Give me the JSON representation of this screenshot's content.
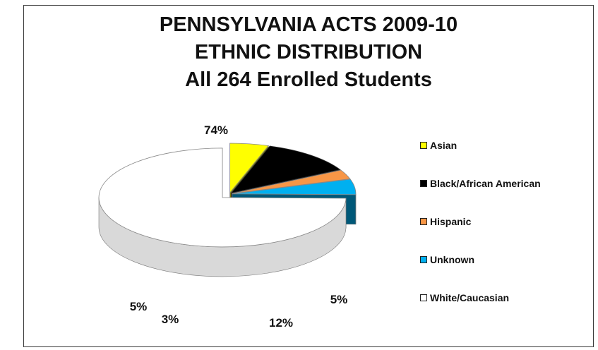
{
  "chart_data": {
    "type": "pie",
    "title_lines": [
      "PENNSYLVANIA ACTS 2009-10",
      "ETHNIC DISTRIBUTION",
      "All 264 Enrolled Students"
    ],
    "categories": [
      "Asian",
      "Black/African American",
      "Hispanic",
      "Unknown",
      "White/Caucasian"
    ],
    "values": [
      5,
      12,
      3,
      5,
      74
    ],
    "data_labels": [
      "5%",
      "12%",
      "3%",
      "5%",
      "74%"
    ],
    "colors": [
      "#ffff00",
      "#000000",
      "#f79646",
      "#00b0f0",
      "#ffffff"
    ],
    "style": "3d-exploded",
    "legend_position": "right"
  }
}
